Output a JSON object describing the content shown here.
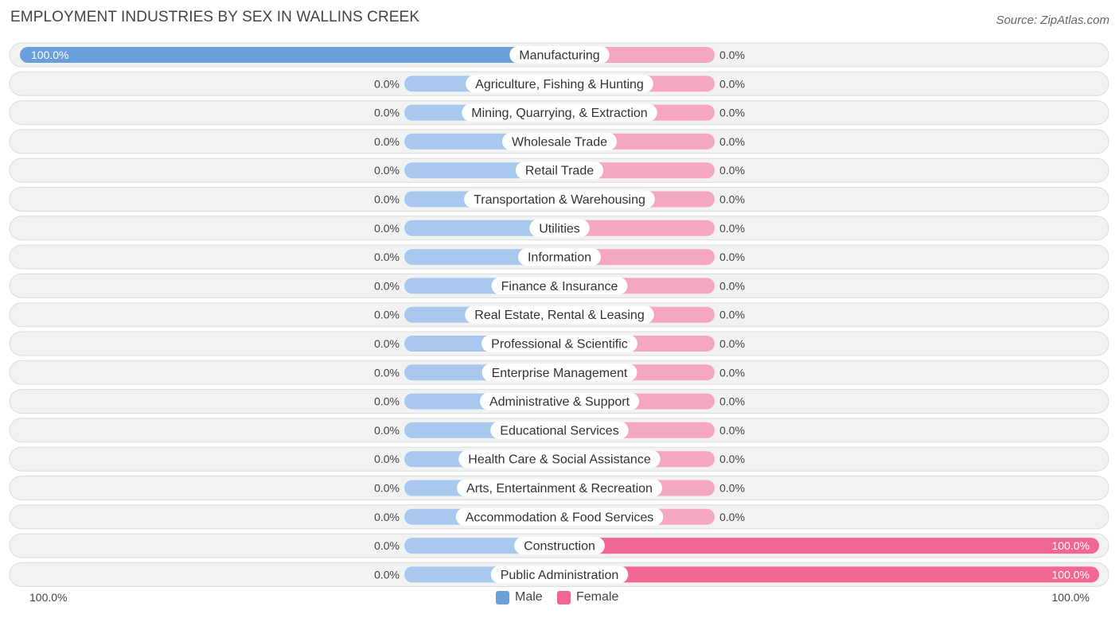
{
  "header": {
    "title": "EMPLOYMENT INDUSTRIES BY SEX IN WALLINS CREEK",
    "source": "Source: ZipAtlas.com"
  },
  "colors": {
    "male_full": "#6a9fdc",
    "male_stub": "#a9c8ee",
    "female_full": "#f06792",
    "female_stub": "#f5a7c0",
    "row_bg": "#f2f2f2",
    "row_border": "#dcdcdc"
  },
  "legend": {
    "male_label": "Male",
    "female_label": "Female"
  },
  "axis": {
    "left_label": "100.0%",
    "right_label": "100.0%"
  },
  "chart_data": {
    "type": "bar",
    "orientation": "horizontal-diverging",
    "title": "EMPLOYMENT INDUSTRIES BY SEX IN WALLINS CREEK",
    "xlim": [
      -100,
      100
    ],
    "legend_position": "bottom-center",
    "categories": [
      "Manufacturing",
      "Agriculture, Fishing & Hunting",
      "Mining, Quarrying, & Extraction",
      "Wholesale Trade",
      "Retail Trade",
      "Transportation & Warehousing",
      "Utilities",
      "Information",
      "Finance & Insurance",
      "Real Estate, Rental & Leasing",
      "Professional & Scientific",
      "Enterprise Management",
      "Administrative & Support",
      "Educational Services",
      "Health Care & Social Assistance",
      "Arts, Entertainment & Recreation",
      "Accommodation & Food Services",
      "Construction",
      "Public Administration"
    ],
    "series": [
      {
        "name": "Male",
        "values": [
          100,
          0,
          0,
          0,
          0,
          0,
          0,
          0,
          0,
          0,
          0,
          0,
          0,
          0,
          0,
          0,
          0,
          0,
          0
        ],
        "labels": [
          "100.0%",
          "0.0%",
          "0.0%",
          "0.0%",
          "0.0%",
          "0.0%",
          "0.0%",
          "0.0%",
          "0.0%",
          "0.0%",
          "0.0%",
          "0.0%",
          "0.0%",
          "0.0%",
          "0.0%",
          "0.0%",
          "0.0%",
          "0.0%",
          "0.0%"
        ]
      },
      {
        "name": "Female",
        "values": [
          0,
          0,
          0,
          0,
          0,
          0,
          0,
          0,
          0,
          0,
          0,
          0,
          0,
          0,
          0,
          0,
          0,
          100,
          100
        ],
        "labels": [
          "0.0%",
          "0.0%",
          "0.0%",
          "0.0%",
          "0.0%",
          "0.0%",
          "0.0%",
          "0.0%",
          "0.0%",
          "0.0%",
          "0.0%",
          "0.0%",
          "0.0%",
          "0.0%",
          "0.0%",
          "0.0%",
          "0.0%",
          "100.0%",
          "100.0%"
        ]
      }
    ]
  }
}
